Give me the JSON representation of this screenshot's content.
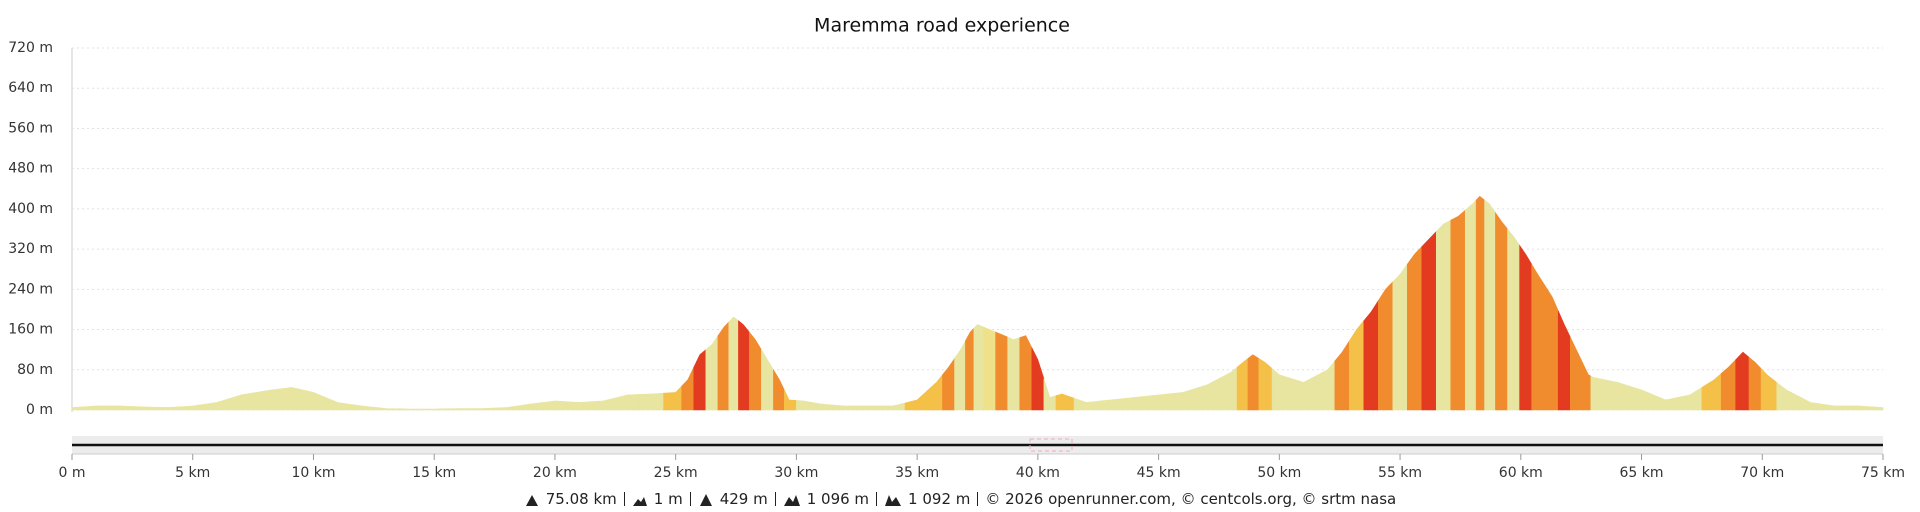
{
  "chart_data": {
    "type": "area",
    "title": "Maremma road experience",
    "x": [
      0,
      1,
      2,
      3,
      4,
      5,
      6,
      7,
      8,
      9.1,
      10,
      11,
      12,
      13,
      14,
      15,
      16,
      17,
      18,
      19,
      20,
      21,
      22,
      23,
      24,
      25,
      25.5,
      26,
      26.5,
      27,
      27.4,
      27.8,
      28.3,
      28.8,
      29.3,
      29.7,
      30.3,
      31,
      32,
      33,
      34,
      35,
      35.8,
      36.3,
      36.8,
      37.2,
      37.5,
      38,
      38.5,
      39,
      39.5,
      40,
      40.5,
      41,
      42,
      43,
      44,
      45,
      46,
      47,
      48,
      48.5,
      48.9,
      49.4,
      50,
      51,
      52,
      52.6,
      53.2,
      53.8,
      54.4,
      55,
      55.6,
      56.2,
      56.8,
      57.4,
      58,
      58.3,
      58.7,
      59.2,
      59.7,
      60.2,
      60.7,
      61.3,
      61.8,
      62.3,
      62.8,
      63,
      64,
      65,
      66,
      67,
      68,
      68.6,
      69.2,
      69.7,
      70.2,
      71,
      72,
      73,
      74,
      75
    ],
    "values": [
      5,
      8,
      8,
      6,
      5,
      8,
      15,
      30,
      38,
      45,
      35,
      15,
      8,
      3,
      2,
      2,
      3,
      3,
      5,
      12,
      18,
      15,
      18,
      30,
      32,
      35,
      60,
      110,
      130,
      165,
      185,
      170,
      140,
      100,
      60,
      20,
      18,
      12,
      8,
      8,
      8,
      20,
      55,
      85,
      120,
      155,
      170,
      160,
      150,
      140,
      148,
      100,
      25,
      32,
      15,
      20,
      25,
      30,
      35,
      50,
      75,
      95,
      110,
      95,
      70,
      55,
      80,
      115,
      160,
      195,
      240,
      270,
      310,
      340,
      370,
      385,
      410,
      425,
      410,
      375,
      345,
      310,
      270,
      225,
      170,
      120,
      70,
      65,
      55,
      40,
      20,
      30,
      60,
      85,
      115,
      95,
      70,
      40,
      15,
      8,
      8,
      5
    ],
    "colors": [
      "#e8e5a0",
      "#e8e5a0",
      "#e8e5a0",
      "#e8e5a0",
      "#e8e5a0",
      "#e8e5a0",
      "#e8e5a0",
      "#e8e5a0",
      "#e8e5a0",
      "#e8e5a0",
      "#e8e5a0",
      "#e8e5a0",
      "#e8e5a0",
      "#e8e5a0",
      "#e8e5a0",
      "#e8e5a0",
      "#e8e5a0",
      "#e8e5a0",
      "#e8e5a0",
      "#e8e5a0",
      "#e8e5a0",
      "#e8e5a0",
      "#e8e5a0",
      "#e8e5a0",
      "#e8e5a0",
      "#f5c048",
      "#f08c2e",
      "#e33b1f",
      "#e8e5a0",
      "#f08c2e",
      "#e8e5a0",
      "#e33b1f",
      "#f08c2e",
      "#e8e5a0",
      "#f08c2e",
      "#f5c048",
      "#e8e5a0",
      "#e8e5a0",
      "#e8e5a0",
      "#e8e5a0",
      "#e8e5a0",
      "#f5c048",
      "#f5c048",
      "#f08c2e",
      "#e8e5a0",
      "#f08c2e",
      "#e8e5a0",
      "#efe08a",
      "#f08c2e",
      "#e8e5a0",
      "#f08c2e",
      "#e33b1f",
      "#e8e5a0",
      "#f5c048",
      "#e8e5a0",
      "#e8e5a0",
      "#e8e5a0",
      "#e8e5a0",
      "#e8e5a0",
      "#e8e5a0",
      "#e8e5a0",
      "#f5c048",
      "#f08c2e",
      "#f5c048",
      "#e8e5a0",
      "#e8e5a0",
      "#e8e5a0",
      "#f08c2e",
      "#f5c048",
      "#e33b1f",
      "#f08c2e",
      "#e8e5a0",
      "#f08c2e",
      "#e33b1f",
      "#e8e5a0",
      "#f08c2e",
      "#e8e5a0",
      "#f08c2e",
      "#e8e5a0",
      "#f08c2e",
      "#e8e5a0",
      "#e33b1f",
      "#f08c2e",
      "#f08c2e",
      "#e33b1f",
      "#f08c2e",
      "#f08c2e",
      "#e8e5a0",
      "#e8e5a0",
      "#e8e5a0",
      "#e8e5a0",
      "#e8e5a0",
      "#f5c048",
      "#f08c2e",
      "#e33b1f",
      "#f08c2e",
      "#f5c048",
      "#e8e5a0",
      "#e8e5a0",
      "#e8e5a0",
      "#e8e5a0",
      "#e8e5a0"
    ],
    "xlim": [
      0,
      75
    ],
    "ylim": [
      0,
      720
    ],
    "yticks": [
      {
        "value": 0,
        "label": "0 m"
      },
      {
        "value": 80,
        "label": "80 m"
      },
      {
        "value": 160,
        "label": "160 m"
      },
      {
        "value": 240,
        "label": "240 m"
      },
      {
        "value": 320,
        "label": "320 m"
      },
      {
        "value": 400,
        "label": "400 m"
      },
      {
        "value": 480,
        "label": "480 m"
      },
      {
        "value": 560,
        "label": "560 m"
      },
      {
        "value": 640,
        "label": "640 m"
      },
      {
        "value": 720,
        "label": "720 m"
      }
    ],
    "xticks": [
      {
        "value": 0,
        "label": "0 m"
      },
      {
        "value": 5,
        "label": "5 km"
      },
      {
        "value": 10,
        "label": "10 km"
      },
      {
        "value": 15,
        "label": "15 km"
      },
      {
        "value": 20,
        "label": "20 km"
      },
      {
        "value": 25,
        "label": "25 km"
      },
      {
        "value": 30,
        "label": "30 km"
      },
      {
        "value": 35,
        "label": "35 km"
      },
      {
        "value": 40,
        "label": "40 km"
      },
      {
        "value": 45,
        "label": "45 km"
      },
      {
        "value": 50,
        "label": "50 km"
      },
      {
        "value": 55,
        "label": "55 km"
      },
      {
        "value": 60,
        "label": "60 km"
      },
      {
        "value": 65,
        "label": "65 km"
      },
      {
        "value": 70,
        "label": "70 km"
      },
      {
        "value": 75,
        "label": "75 km"
      }
    ],
    "grid": true
  },
  "footer": {
    "distance": "75.08 km",
    "min_elevation": "1 m",
    "max_elevation": "429 m",
    "ascent": "1 096 m",
    "descent": "1 092 m",
    "credits": "© 2026 openrunner.com, © centcols.org, © srtm nasa"
  }
}
